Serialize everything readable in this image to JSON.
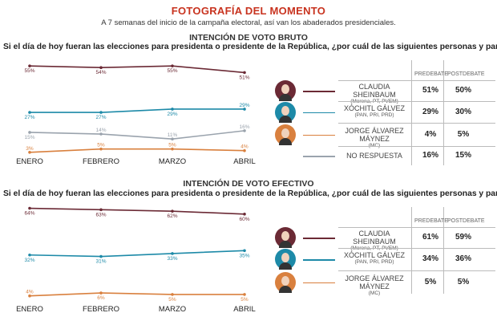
{
  "header": {
    "title": "FOTOGRAFÍA DEL MOMENTO",
    "subtitle": "A 7 semanas del inicio de la campaña electoral, así van los abaderados presidenciales."
  },
  "colors": {
    "sheinbaum": "#6b2a35",
    "galvez": "#1d8aa8",
    "maynez": "#d9803e",
    "no_respuesta": "#9aa3ad",
    "title": "#c8331f"
  },
  "chart_data": [
    {
      "type": "line",
      "title": "INTENCIÓN DE VOTO BRUTO",
      "question": "Si el día de hoy fueran las elecciones para presidenta o presidente de la República, ¿por cuál de las siguientes personas y partido votaría?",
      "categories": [
        "ENERO",
        "FEBRERO",
        "MARZO",
        "ABRIL"
      ],
      "series": [
        {
          "key": "sheinbaum",
          "values": [
            55,
            54,
            55,
            51
          ],
          "labels": [
            "55%",
            "54%",
            "55%",
            "51%"
          ]
        },
        {
          "key": "galvez",
          "values": [
            27,
            27,
            29,
            29
          ],
          "labels": [
            "27%",
            "27%",
            "29%",
            "29%"
          ]
        },
        {
          "key": "no_respuesta",
          "values": [
            15,
            14,
            11,
            16
          ],
          "labels": [
            "15%",
            "14%",
            "11%",
            "16%"
          ]
        },
        {
          "key": "maynez",
          "values": [
            3,
            5,
            5,
            4
          ],
          "labels": [
            "3%",
            "5%",
            "5%",
            "4%"
          ]
        }
      ],
      "table": {
        "headers": [
          "PREDEBATE",
          "POSTDEBATE"
        ],
        "rows": [
          {
            "key": "sheinbaum",
            "name": "CLAUDIA SHEINBAUM",
            "party": "(Morena, PT, PVEM)",
            "pre": "51%",
            "post": "50%"
          },
          {
            "key": "galvez",
            "name": "XÓCHITL GÁLVEZ",
            "party": "(PAN, PRI, PRD)",
            "pre": "29%",
            "post": "30%"
          },
          {
            "key": "maynez",
            "name": "JORGE ÁLVAREZ MÁYNEZ",
            "party": "(MC)",
            "pre": "4%",
            "post": "5%"
          },
          {
            "key": "no_respuesta",
            "name": "NO RESPUESTA",
            "party": "",
            "pre": "16%",
            "post": "15%"
          }
        ]
      }
    },
    {
      "type": "line",
      "title": "INTENCIÓN DE VOTO EFECTIVO",
      "question": "Si el día de hoy fueran las elecciones para presidenta o presidente de la República, ¿por cuál de las siguientes personas y partido votaría?",
      "categories": [
        "ENERO",
        "FEBRERO",
        "MARZO",
        "ABRIL"
      ],
      "series": [
        {
          "key": "sheinbaum",
          "values": [
            64,
            63,
            62,
            60
          ],
          "labels": [
            "64%",
            "63%",
            "62%",
            "60%"
          ]
        },
        {
          "key": "galvez",
          "values": [
            32,
            31,
            33,
            35
          ],
          "labels": [
            "32%",
            "31%",
            "33%",
            "35%"
          ]
        },
        {
          "key": "maynez",
          "values": [
            4,
            6,
            5,
            5
          ],
          "labels": [
            "4%",
            "6%",
            "5%",
            "5%"
          ]
        }
      ],
      "table": {
        "headers": [
          "PREDEBATE",
          "POSTDEBATE"
        ],
        "rows": [
          {
            "key": "sheinbaum",
            "name": "CLAUDIA SHEINBAUM",
            "party": "(Morena, PT, PVEM)",
            "pre": "61%",
            "post": "59%"
          },
          {
            "key": "galvez",
            "name": "XÓCHITL GÁLVEZ",
            "party": "(PAN, PRI, PRD)",
            "pre": "34%",
            "post": "36%"
          },
          {
            "key": "maynez",
            "name": "JORGE ÁLVAREZ MÁYNEZ",
            "party": "(MC)",
            "pre": "5%",
            "post": "5%"
          }
        ]
      }
    }
  ]
}
